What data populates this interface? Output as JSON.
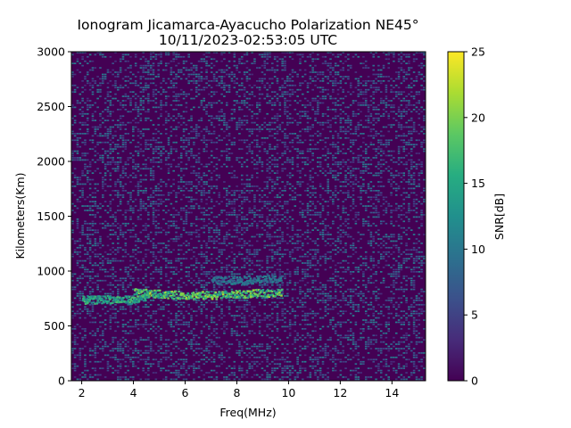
{
  "chart_data": {
    "type": "heatmap",
    "title_line1": "Ionogram Jicamarca-Ayacucho Polarization NE45°",
    "title_line2": "10/11/2023-02:53:05 UTC",
    "xlabel": "Freq(MHz)",
    "ylabel": "Kilometers(Km)",
    "colorbar_label": "SNR[dB]",
    "xlim": [
      1.6,
      15.3
    ],
    "ylim": [
      0,
      3000
    ],
    "clim": [
      0,
      25
    ],
    "colormap": "viridis",
    "x_ticks": [
      2,
      4,
      6,
      8,
      10,
      12,
      14
    ],
    "x_tick_labels": [
      "2",
      "4",
      "6",
      "8",
      "10",
      "12",
      "14"
    ],
    "y_ticks": [
      0,
      500,
      1000,
      1500,
      2000,
      2500,
      3000
    ],
    "y_tick_labels": [
      "0",
      "500",
      "1000",
      "1500",
      "2000",
      "2500",
      "3000"
    ],
    "cbar_ticks": [
      0,
      5,
      10,
      15,
      20,
      25
    ],
    "cbar_tick_labels": [
      "0",
      "5",
      "10",
      "15",
      "20",
      "25"
    ],
    "background_snr": 0,
    "echo_traces": [
      {
        "freq": [
          2.0,
          2.6,
          3.0,
          3.5,
          4.0,
          4.5
        ],
        "range_km": [
          740,
          745,
          750,
          745,
          740,
          760
        ],
        "snr": 18
      },
      {
        "freq": [
          4.0,
          4.8,
          5.5,
          6.5,
          7.5,
          8.5,
          9.7
        ],
        "range_km": [
          810,
          800,
          790,
          785,
          790,
          800,
          810
        ],
        "snr": 22
      },
      {
        "freq": [
          7.0,
          8.0,
          9.0,
          9.7
        ],
        "range_km": [
          920,
          925,
          930,
          935
        ],
        "snr": 12
      }
    ]
  }
}
